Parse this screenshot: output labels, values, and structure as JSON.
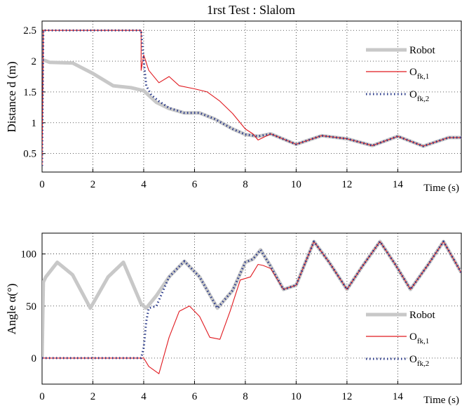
{
  "chart_data": [
    {
      "type": "line",
      "title": "1rst Test : Slalom",
      "xlabel": "Time (s)",
      "ylabel": "Distance d (m)",
      "xlim": [
        0,
        16.5
      ],
      "ylim": [
        0.2,
        2.65
      ],
      "xticks": [
        0,
        2,
        4,
        6,
        8,
        10,
        12,
        14
      ],
      "xtick_labels": [
        "0",
        "2",
        "4",
        "6",
        "8",
        "10",
        "12",
        "14"
      ],
      "yticks": [
        0.5,
        1,
        1.5,
        2,
        2.5
      ],
      "ytick_labels": [
        "0.5",
        "1",
        "1.5",
        "2",
        "2.5"
      ],
      "grid": true,
      "legend_position": "top-right",
      "series": [
        {
          "name": "Robot",
          "color": "#c8c8c8",
          "style": "thick-solid",
          "x": [
            0,
            0.05,
            0.3,
            1.2,
            2.0,
            2.8,
            3.5,
            4.0,
            4.5,
            5.0,
            5.6,
            6.2,
            6.8,
            7.5,
            8.0,
            8.5,
            9.0,
            10.0,
            11.0,
            12.0,
            13.0,
            14.0,
            15.0,
            16.0,
            16.5
          ],
          "y": [
            2.0,
            2.02,
            1.98,
            1.97,
            1.8,
            1.6,
            1.57,
            1.52,
            1.33,
            1.23,
            1.16,
            1.16,
            1.06,
            0.9,
            0.81,
            0.78,
            0.82,
            0.65,
            0.79,
            0.74,
            0.63,
            0.78,
            0.62,
            0.76,
            0.76
          ]
        },
        {
          "name": "O_fk,1",
          "color": "#e0191f",
          "style": "thin-solid",
          "x": [
            0,
            0.05,
            0.1,
            3.9,
            3.9,
            4.0,
            4.2,
            4.6,
            5.0,
            5.4,
            6.0,
            6.5,
            7.0,
            7.5,
            8.0,
            8.3,
            8.5,
            9.0,
            10.0,
            11.0,
            12.0,
            13.0,
            14.0,
            15.0,
            16.0,
            16.5
          ],
          "y": [
            0.3,
            2.5,
            2.5,
            2.5,
            1.85,
            2.1,
            1.85,
            1.65,
            1.75,
            1.6,
            1.55,
            1.5,
            1.35,
            1.15,
            0.9,
            0.82,
            0.72,
            0.82,
            0.65,
            0.79,
            0.74,
            0.63,
            0.78,
            0.62,
            0.76,
            0.76
          ]
        },
        {
          "name": "O_fk,2",
          "color": "#2a3a8a",
          "style": "dotted",
          "x": [
            0,
            0.05,
            0.1,
            3.9,
            4.0,
            4.1,
            4.3,
            4.6,
            5.0,
            5.6,
            6.2,
            6.8,
            7.5,
            8.0,
            8.5,
            9.0,
            10.0,
            11.0,
            12.0,
            13.0,
            14.0,
            15.0,
            16.0,
            16.5
          ],
          "y": [
            0.3,
            2.5,
            2.5,
            2.5,
            2.0,
            1.6,
            1.45,
            1.35,
            1.24,
            1.16,
            1.16,
            1.06,
            0.9,
            0.81,
            0.78,
            0.82,
            0.65,
            0.79,
            0.74,
            0.63,
            0.78,
            0.62,
            0.76,
            0.76
          ]
        }
      ]
    },
    {
      "type": "line",
      "title": "",
      "xlabel": "Time (s)",
      "ylabel": "Angle α(°)",
      "xlim": [
        0,
        16.5
      ],
      "ylim": [
        -25,
        120
      ],
      "xticks": [
        0,
        2,
        4,
        6,
        8,
        10,
        12,
        14
      ],
      "xtick_labels": [
        "0",
        "2",
        "4",
        "6",
        "8",
        "10",
        "12",
        "14"
      ],
      "yticks": [
        0,
        50,
        100
      ],
      "ytick_labels": [
        "0",
        "50",
        "100"
      ],
      "grid": true,
      "legend_position": "bottom-right",
      "series": [
        {
          "name": "Robot",
          "color": "#c8c8c8",
          "style": "thick-solid",
          "x": [
            0,
            0.05,
            0.15,
            0.6,
            1.2,
            1.9,
            2.6,
            3.2,
            3.9,
            4.1,
            4.5,
            5.0,
            5.6,
            6.2,
            6.9,
            7.5,
            8.0,
            8.3,
            8.6,
            9.0,
            9.5,
            10.0,
            10.7,
            11.3,
            12.0,
            12.6,
            13.3,
            13.9,
            14.5,
            15.2,
            15.8,
            16.5
          ],
          "y": [
            0,
            73,
            78,
            92,
            80,
            48,
            78,
            92,
            52,
            48,
            60,
            78,
            93,
            78,
            48,
            65,
            92,
            95,
            104,
            88,
            66,
            70,
            112,
            92,
            66,
            88,
            112,
            90,
            66,
            90,
            112,
            82
          ]
        },
        {
          "name": "O_fk,1",
          "color": "#e0191f",
          "style": "thin-solid",
          "x": [
            0,
            3.9,
            4.0,
            4.2,
            4.6,
            5.0,
            5.4,
            5.8,
            6.2,
            6.6,
            7.0,
            7.4,
            7.8,
            8.2,
            8.5,
            8.7,
            9.0,
            9.5,
            10.0,
            10.7,
            11.3,
            12.0,
            12.6,
            13.3,
            13.9,
            14.5,
            15.2,
            15.8,
            16.5
          ],
          "y": [
            0,
            0,
            0,
            -8,
            -15,
            20,
            45,
            50,
            40,
            20,
            18,
            45,
            75,
            78,
            90,
            89,
            86,
            66,
            70,
            112,
            92,
            66,
            88,
            112,
            90,
            66,
            90,
            112,
            82
          ]
        },
        {
          "name": "O_fk,2",
          "color": "#2a3a8a",
          "style": "dotted",
          "x": [
            0,
            3.9,
            4.0,
            4.1,
            4.2,
            4.5,
            5.0,
            5.6,
            6.2,
            6.9,
            7.5,
            8.0,
            8.3,
            8.6,
            9.0,
            9.5,
            10.0,
            10.7,
            11.3,
            12.0,
            12.6,
            13.3,
            13.9,
            14.5,
            15.2,
            15.8,
            16.5
          ],
          "y": [
            0,
            0,
            10,
            35,
            48,
            50,
            78,
            93,
            78,
            48,
            65,
            92,
            95,
            104,
            88,
            66,
            70,
            112,
            92,
            66,
            88,
            112,
            90,
            66,
            90,
            112,
            82
          ]
        }
      ]
    }
  ]
}
